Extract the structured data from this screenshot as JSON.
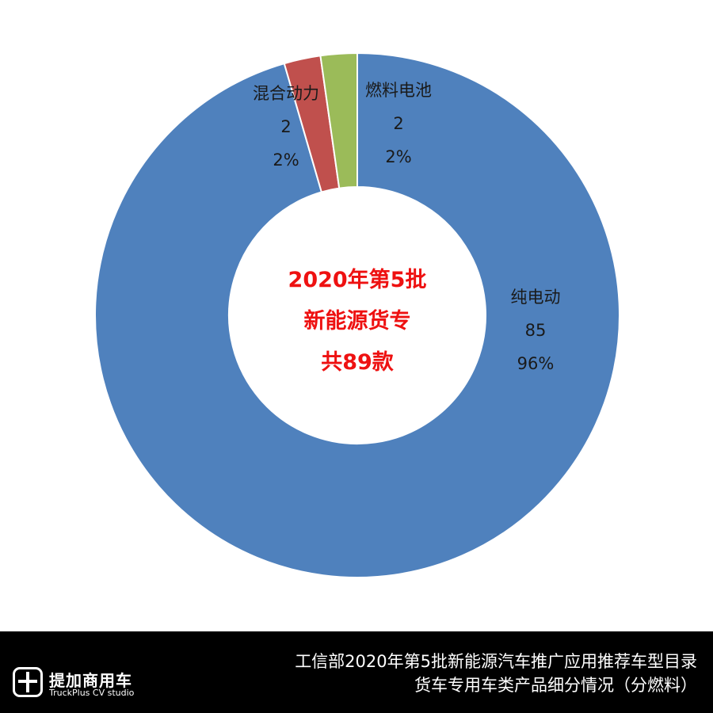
{
  "chart_data": {
    "type": "pie",
    "variant": "donut",
    "title": "",
    "center_text": [
      "2020年第5批",
      "新能源货专",
      "共89款"
    ],
    "slices": [
      {
        "name": "纯电动",
        "value": 85,
        "percent": "96%",
        "color": "#4f81bd"
      },
      {
        "name": "混合动力",
        "value": 2,
        "percent": "2%",
        "color": "#c0504d"
      },
      {
        "name": "燃料电池",
        "value": 2,
        "percent": "2%",
        "color": "#9bbb59"
      }
    ],
    "total": 89,
    "legend": "none",
    "label_colors": {
      "center": "#ee1111",
      "labels": "#1a1a1a"
    }
  },
  "footer": {
    "logo_name": "提加商用车",
    "logo_sub": "TruckPlus CV studio",
    "caption_line1": "工信部2020年第5批新能源汽车推广应用推荐车型目录",
    "caption_line2": "货车专用车类产品细分情况（分燃料）",
    "background": "#000000",
    "text_color": "#ffffff"
  },
  "icons": {
    "logo": "truckplus-logo-icon"
  }
}
